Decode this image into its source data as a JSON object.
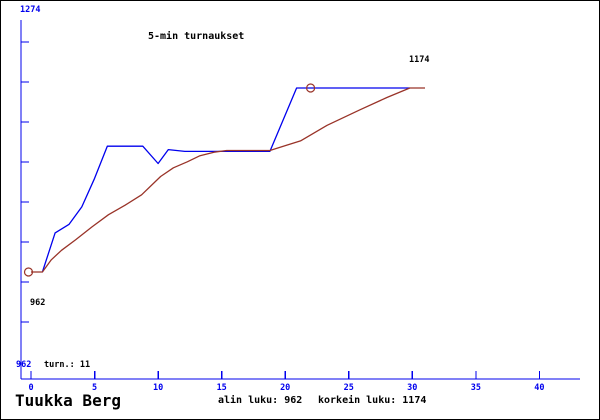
{
  "chart_data": {
    "type": "line",
    "title": "5-min turnaukset",
    "player": "Tuukka Berg",
    "x_ticks": [
      0,
      5,
      10,
      15,
      20,
      25,
      30,
      35,
      40
    ],
    "x_range": [
      0,
      44
    ],
    "y_range": [
      962,
      1274
    ],
    "y_axis_top_label": "1274",
    "y_axis_bottom_label": "962",
    "turn_count_label": "turn.: 11",
    "min_point_label": "962",
    "max_point_label": "1174",
    "footer_min": "alin luku: 962",
    "footer_max": "korkein luku: 1174",
    "grid": false,
    "legend": "none",
    "colors": {
      "axis": "#0000ee",
      "series_result": "#0000ee",
      "series_average": "#993328",
      "marker": "#993328",
      "text": "#000000"
    },
    "series": [
      {
        "name": "tournament-rating",
        "color": "#0000ee",
        "points": [
          [
            0.9,
            962
          ],
          [
            1.9,
            1007
          ],
          [
            3.0,
            1017
          ],
          [
            4.0,
            1037
          ],
          [
            5.0,
            1070
          ],
          [
            6.0,
            1107
          ],
          [
            8.8,
            1107
          ],
          [
            10.0,
            1087
          ],
          [
            10.8,
            1103
          ],
          [
            12.1,
            1101
          ],
          [
            18.8,
            1101
          ],
          [
            20.9,
            1174
          ],
          [
            29.8,
            1174
          ]
        ]
      },
      {
        "name": "average-rating",
        "color": "#993328",
        "points": [
          [
            0,
            962
          ],
          [
            0.9,
            962
          ],
          [
            1.6,
            976
          ],
          [
            2.4,
            987
          ],
          [
            3.5,
            999
          ],
          [
            4.8,
            1014
          ],
          [
            6.1,
            1028
          ],
          [
            7.4,
            1039
          ],
          [
            8.7,
            1051
          ],
          [
            10.2,
            1072
          ],
          [
            11.2,
            1082
          ],
          [
            12.3,
            1089
          ],
          [
            13.3,
            1096
          ],
          [
            14.4,
            1100
          ],
          [
            15.4,
            1102
          ],
          [
            18.8,
            1102
          ],
          [
            20.1,
            1108
          ],
          [
            21.2,
            1113
          ],
          [
            23.3,
            1131
          ],
          [
            25.9,
            1149
          ],
          [
            28.0,
            1163
          ],
          [
            29.8,
            1174
          ],
          [
            31.0,
            1174
          ]
        ]
      }
    ],
    "markers": [
      {
        "x": 0,
        "y": 962
      },
      {
        "x": 22,
        "y": 1174
      }
    ]
  }
}
